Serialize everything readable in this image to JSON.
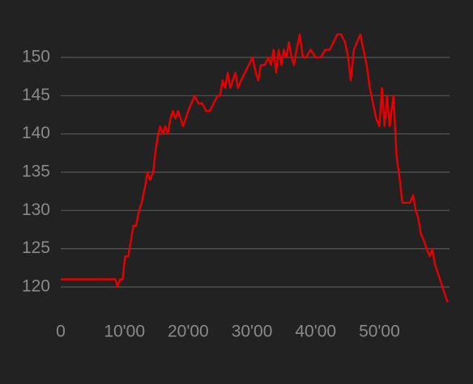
{
  "chart_data": {
    "type": "line",
    "color": "#e60000",
    "grid": true,
    "xlim": [
      0,
      61
    ],
    "xticks": [
      0,
      {
        "value": 10,
        "label": "10'00"
      },
      {
        "value": 20,
        "label": "20'00"
      },
      {
        "value": 30,
        "label": "30'00"
      },
      {
        "value": 40,
        "label": "40'00"
      },
      {
        "value": 50,
        "label": "50'00"
      }
    ],
    "ylim": [
      118,
      153
    ],
    "yticks": [
      120,
      125,
      130,
      135,
      140,
      145,
      150
    ],
    "x": [
      0,
      8.6,
      8.9,
      9.3,
      9.7,
      10.1,
      10.6,
      11.0,
      11.4,
      11.8,
      12.3,
      12.7,
      13.2,
      13.6,
      14.0,
      14.5,
      14.9,
      15.3,
      15.6,
      16.0,
      16.4,
      16.8,
      17.2,
      17.6,
      18.0,
      18.4,
      18.8,
      19.2,
      19.6,
      20.0,
      20.5,
      21.0,
      21.6,
      22.2,
      22.8,
      23.4,
      24.0,
      24.6,
      25.0,
      25.4,
      25.8,
      26.2,
      26.6,
      27.0,
      27.4,
      27.8,
      28.3,
      28.9,
      29.5,
      30.1,
      30.6,
      31.0,
      31.4,
      32.0,
      32.6,
      33.0,
      33.4,
      33.8,
      34.2,
      34.6,
      35.0,
      35.4,
      35.8,
      36.2,
      36.6,
      37.0,
      37.5,
      38.0,
      38.5,
      39.2,
      40.0,
      40.8,
      41.5,
      42.2,
      42.8,
      43.4,
      44.0,
      44.6,
      45.1,
      45.5,
      46.0,
      46.5,
      47.0,
      47.5,
      48.0,
      48.5,
      49.0,
      49.5,
      50.0,
      50.4,
      50.8,
      51.2,
      51.6,
      52.2,
      52.7,
      53.2,
      53.6,
      54.2,
      54.8,
      55.3,
      55.7,
      56.1,
      56.5,
      57.0,
      57.4,
      57.9,
      58.3,
      58.7,
      59.1,
      59.5,
      59.9,
      60.3,
      60.7
    ],
    "values": [
      121,
      121,
      120,
      121,
      121,
      124,
      124,
      126,
      128,
      128,
      130,
      131,
      133,
      135,
      134,
      135,
      138,
      140,
      141,
      140,
      141,
      140,
      142,
      143,
      142,
      143,
      142,
      141,
      142,
      143,
      144,
      145,
      144,
      144,
      143,
      143,
      144,
      145,
      145,
      147,
      146,
      148,
      146,
      147,
      148,
      146,
      147,
      148,
      149,
      150,
      148,
      147,
      149,
      149,
      150,
      149,
      151,
      148,
      151,
      149,
      151,
      150,
      152,
      150,
      149,
      151,
      153,
      150,
      150,
      151,
      150,
      150,
      151,
      151,
      152,
      153,
      153,
      152,
      150,
      147,
      151,
      152,
      153,
      151,
      149,
      146,
      144,
      142,
      141,
      146,
      141,
      145,
      141,
      145,
      137,
      134,
      131,
      131,
      131,
      132,
      130,
      129,
      127,
      126,
      125,
      124,
      125,
      123,
      122,
      121,
      120,
      119,
      118
    ]
  }
}
